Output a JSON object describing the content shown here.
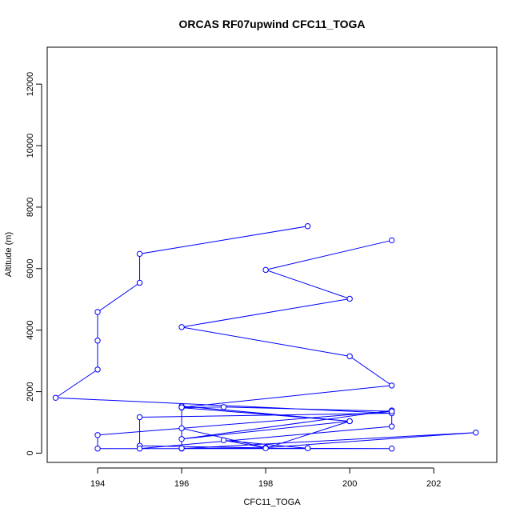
{
  "chart_data": {
    "type": "line",
    "title": "ORCAS RF07upwind CFC11_TOGA",
    "xlabel": "CFC11_TOGA",
    "ylabel": "Altitude (m)",
    "xlim": [
      192.8,
      203.5
    ],
    "ylim": [
      -300,
      13200
    ],
    "xticks": [
      194,
      196,
      198,
      200,
      202
    ],
    "yticks": [
      0,
      2000,
      4000,
      6000,
      8000,
      10000,
      12000
    ],
    "grid": false,
    "legend": "none",
    "colors": {
      "series": "#0000ff",
      "axis": "#000000"
    },
    "series": [
      {
        "points": [
          [
            199,
            7380
          ],
          [
            195,
            6480
          ],
          [
            195,
            5540
          ],
          [
            194,
            4590
          ],
          [
            194,
            3660
          ],
          [
            194,
            2720
          ],
          [
            193,
            1800
          ],
          [
            201,
            1300
          ],
          [
            195,
            1170
          ],
          [
            195,
            240
          ],
          [
            198,
            170
          ],
          [
            197,
            420
          ],
          [
            199,
            160
          ],
          [
            201,
            150
          ],
          [
            195,
            150
          ],
          [
            201,
            870
          ],
          [
            201,
            1390
          ],
          [
            196,
            460
          ],
          [
            200,
            1040
          ],
          [
            196,
            1480
          ],
          [
            197,
            1500
          ],
          [
            201,
            1360
          ],
          [
            194,
            590
          ],
          [
            194,
            150
          ],
          [
            196,
            150
          ],
          [
            203,
            670
          ],
          [
            198,
            180
          ],
          [
            196,
            810
          ],
          [
            196,
            1530
          ],
          [
            200,
            1040
          ],
          [
            198,
            160
          ],
          [
            199,
            160
          ],
          [
            196,
            160
          ],
          [
            196,
            1490
          ],
          [
            201,
            2200
          ],
          [
            200,
            3150
          ],
          [
            196,
            4100
          ],
          [
            200,
            5020
          ],
          [
            198,
            5960
          ],
          [
            201,
            6920
          ]
        ]
      }
    ]
  }
}
